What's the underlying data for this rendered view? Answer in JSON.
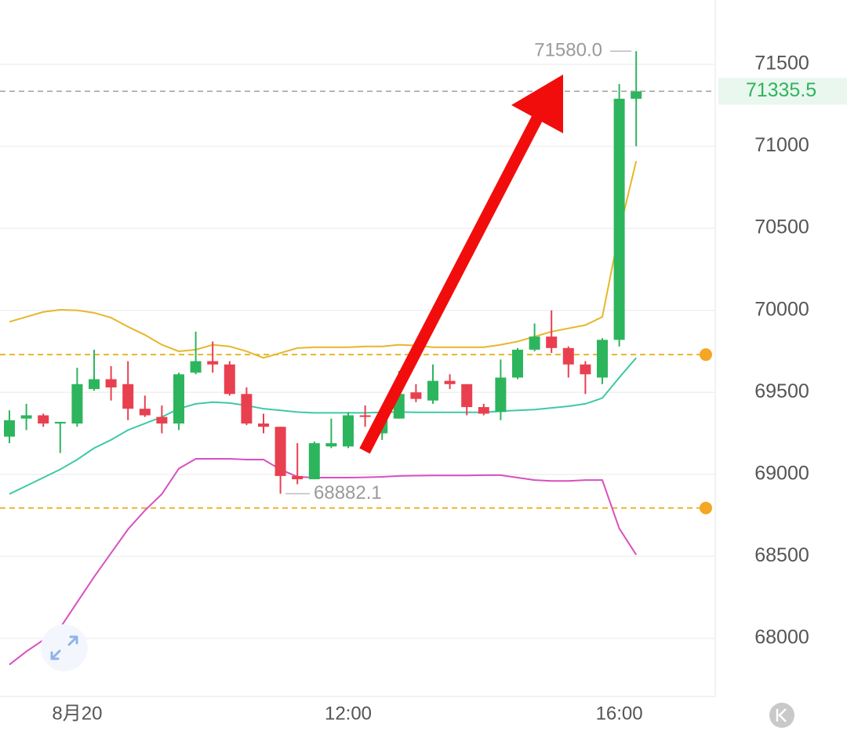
{
  "chart_data": {
    "type": "candlestick",
    "categories": [
      null,
      null,
      null,
      null,
      "8月20",
      null,
      null,
      null,
      null,
      null,
      null,
      null,
      null,
      null,
      null,
      null,
      null,
      null,
      null,
      null,
      "12:00",
      null,
      null,
      null,
      null,
      null,
      null,
      null,
      null,
      null,
      null,
      null,
      null,
      null,
      null,
      null,
      "16:00",
      null
    ],
    "open": [
      69230,
      69340,
      69360,
      69310,
      69310,
      69520,
      69580,
      69550,
      69400,
      69350,
      69310,
      69620,
      69690,
      69670,
      69490,
      69310,
      69290,
      68990,
      68970,
      69170,
      69170,
      69360,
      69250,
      69340,
      69500,
      69450,
      69570,
      69550,
      69410,
      69380,
      69590,
      69760,
      69840,
      69770,
      69670,
      69590,
      69820,
      71290
    ],
    "high": [
      69390,
      69430,
      69370,
      69320,
      69650,
      69760,
      69660,
      69690,
      69480,
      69420,
      69620,
      69870,
      69810,
      69690,
      69530,
      69370,
      69290,
      69190,
      69200,
      69340,
      69380,
      69420,
      69380,
      69630,
      69550,
      69670,
      69610,
      69550,
      69430,
      69700,
      69770,
      69920,
      70000,
      69780,
      69690,
      69830,
      71380,
      71580
    ],
    "low": [
      69190,
      69270,
      69290,
      69130,
      69290,
      69510,
      69450,
      69330,
      69350,
      69250,
      69270,
      69610,
      69620,
      69480,
      69300,
      69250,
      68882.1,
      68940,
      68970,
      69160,
      69160,
      69290,
      69210,
      69340,
      69440,
      69430,
      69520,
      69360,
      69360,
      69330,
      69580,
      69750,
      69740,
      69590,
      69490,
      69550,
      69780,
      71000
    ],
    "close": [
      69330,
      69360,
      69310,
      69320,
      69550,
      69580,
      69530,
      69400,
      69360,
      69310,
      69610,
      69690,
      69670,
      69490,
      69310,
      69290,
      68990,
      68970,
      69190,
      69190,
      69360,
      69350,
      69330,
      69490,
      69460,
      69570,
      69550,
      69410,
      69370,
      69590,
      69760,
      69840,
      69770,
      69670,
      69610,
      69820,
      71290,
      71335.5
    ],
    "up_color": "#2db55d",
    "down_color": "#e8404f",
    "bands": [
      {
        "color": "#e8b62a",
        "values": [
          69930,
          69960,
          69990,
          70003,
          70000,
          69985,
          69955,
          69900,
          69850,
          69790,
          69750,
          69760,
          69790,
          69780,
          69750,
          69710,
          69740,
          69770,
          69775,
          69775,
          69775,
          69780,
          69780,
          69790,
          69785,
          69775,
          69775,
          69775,
          69775,
          69790,
          69810,
          69840,
          69870,
          69890,
          69910,
          69960,
          70480,
          70910
        ]
      },
      {
        "color": "#3ec9a7",
        "values": [
          68880,
          68930,
          68980,
          69030,
          69090,
          69160,
          69210,
          69270,
          69310,
          69350,
          69400,
          69430,
          69440,
          69435,
          69420,
          69400,
          69390,
          69380,
          69375,
          69375,
          69375,
          69375,
          69378,
          69380,
          69378,
          69378,
          69378,
          69378,
          69378,
          69385,
          69390,
          69395,
          69405,
          69415,
          69430,
          69465,
          69590,
          69710
        ]
      },
      {
        "color": "#d94fc0",
        "values": [
          67840,
          67920,
          67990,
          68065,
          68220,
          68375,
          68520,
          68665,
          68780,
          68880,
          69035,
          69095,
          69095,
          69095,
          69090,
          69090,
          69030,
          68985,
          68980,
          68980,
          68980,
          68982,
          68985,
          68990,
          68992,
          68993,
          68993,
          68993,
          68995,
          68995,
          68980,
          68965,
          68960,
          68960,
          68965,
          68965,
          68670,
          68510
        ]
      }
    ],
    "ylim": [
      67646,
      71892
    ],
    "yticks": [
      68000,
      68500,
      69000,
      69500,
      70000,
      70500,
      71000,
      71500
    ],
    "grid": true,
    "price_lines": [
      69730,
      68795
    ],
    "price_line_color": "#e8b62a",
    "last_price": 71335.5,
    "max_marker": {
      "value": 71580,
      "label": "71580.0"
    },
    "min_marker": 68882.1
  }
}
